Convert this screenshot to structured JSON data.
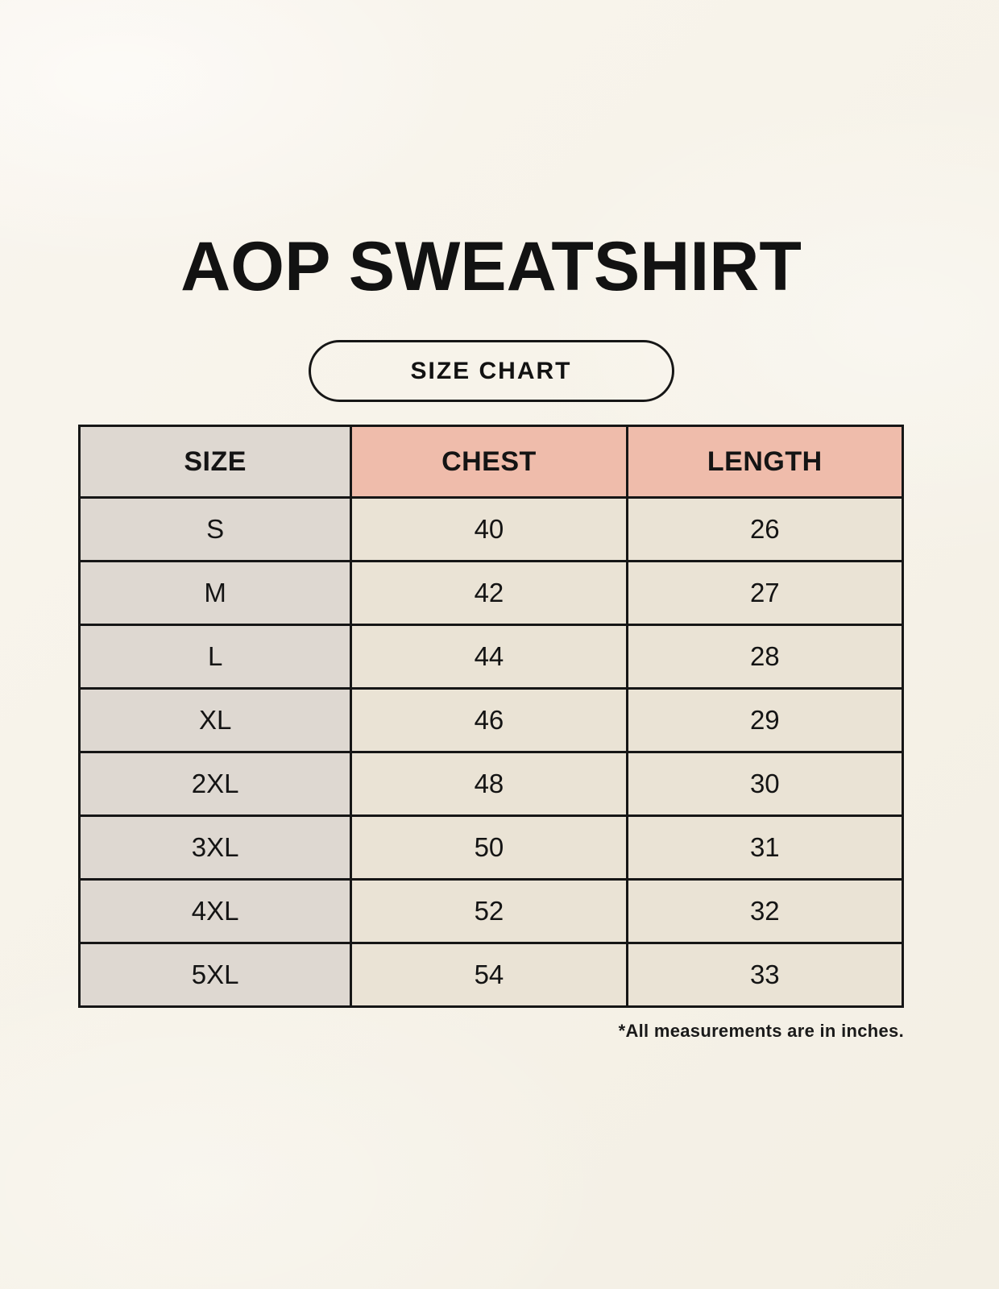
{
  "title": "AOP SWEATSHIRT",
  "size_chart_button": {
    "label": "SIZE CHART"
  },
  "table": {
    "headers": [
      "SIZE",
      "CHEST",
      "LENGTH"
    ],
    "rows": [
      {
        "size": "S",
        "chest": "40",
        "length": "26"
      },
      {
        "size": "M",
        "chest": "42",
        "length": "27"
      },
      {
        "size": "L",
        "chest": "44",
        "length": "28"
      },
      {
        "size": "XL",
        "chest": "46",
        "length": "29"
      },
      {
        "size": "2XL",
        "chest": "48",
        "length": "30"
      },
      {
        "size": "3XL",
        "chest": "50",
        "length": "31"
      },
      {
        "size": "4XL",
        "chest": "52",
        "length": "32"
      },
      {
        "size": "5XL",
        "chest": "54",
        "length": "33"
      }
    ]
  },
  "footnote": "*All measurements are in inches.",
  "colors": {
    "background": "#f6f2e8",
    "size_column_gray": "#ded8d1",
    "measurement_header_pink": "#efbcab",
    "data_cell_beige": "#eae3d5",
    "border_black": "#161616",
    "text": "#141414"
  }
}
